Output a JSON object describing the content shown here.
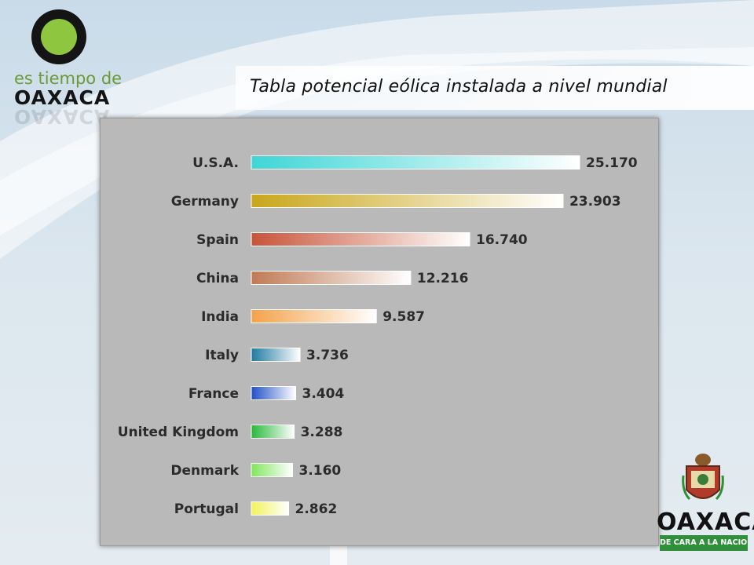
{
  "slide": {
    "title": "Tabla potencial eólica instalada a nivel mundial"
  },
  "logo_top": {
    "line1": "es tiempo de",
    "line2": "OAXACA",
    "ring_color": "#141414",
    "dot_color": "#8ec63f"
  },
  "logo_bottom": {
    "word": "OAXACA",
    "strip": "DE CARA A LA NACION",
    "strip_color": "#2f8f3a"
  },
  "chart_data": {
    "type": "bar",
    "orientation": "horizontal",
    "categories": [
      "U.S.A.",
      "Germany",
      "Spain",
      "China",
      "India",
      "Italy",
      "France",
      "United Kingdom",
      "Denmark",
      "Portugal"
    ],
    "values": [
      25170,
      23903,
      16740,
      12216,
      9587,
      3736,
      3404,
      3288,
      3160,
      2862
    ],
    "value_labels": [
      "25.170",
      "23.903",
      "16.740",
      "12.216",
      "9.587",
      "3.736",
      "3.404",
      "3.288",
      "3.160",
      "2.862"
    ],
    "colors": [
      "#3fd6d6",
      "#c9a61a",
      "#c85438",
      "#c07a55",
      "#f4a24a",
      "#1f7aa0",
      "#2050c8",
      "#28b83a",
      "#7ee85a",
      "#f2f25a"
    ],
    "title": "",
    "xlabel": "",
    "ylabel": "",
    "grid": false,
    "legend": "none"
  }
}
